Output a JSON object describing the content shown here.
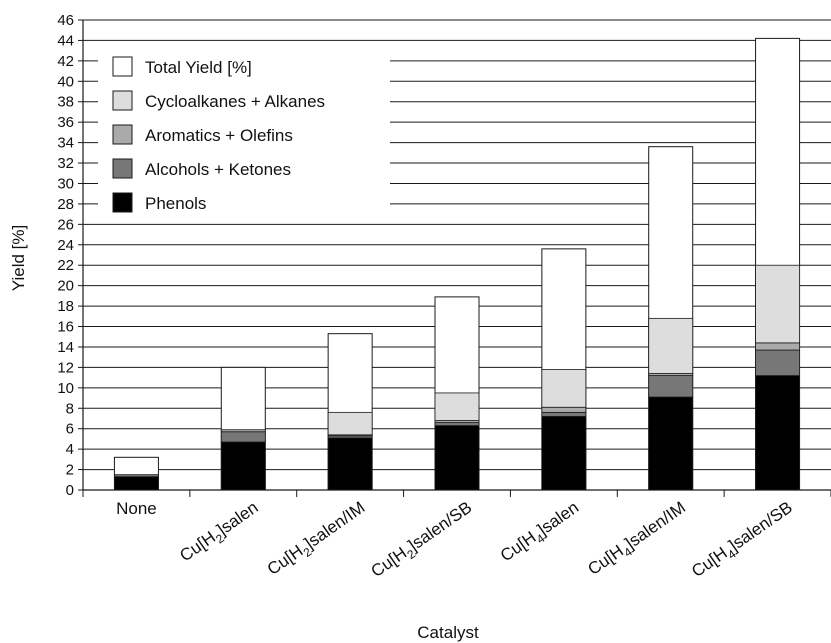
{
  "chart_data": {
    "type": "bar",
    "stacked": true,
    "title": "",
    "xlabel": "Catalyst",
    "ylabel": "Yield [%]",
    "ylim": [
      0,
      46
    ],
    "ytick_step": 2,
    "grid": "horizontal",
    "legend_position": "top-left",
    "categories": [
      {
        "base": "None",
        "sub": "",
        "suffix": ""
      },
      {
        "base": "Cu[H",
        "sub": "2",
        "suffix": "]salen"
      },
      {
        "base": "Cu[H",
        "sub": "2",
        "suffix": "]salen/IM"
      },
      {
        "base": "Cu[H",
        "sub": "2",
        "suffix": "]salen/SB"
      },
      {
        "base": "Cu[H",
        "sub": "4",
        "suffix": "]salen"
      },
      {
        "base": "Cu[H",
        "sub": "4",
        "suffix": "]salen/IM"
      },
      {
        "base": "Cu[H",
        "sub": "4",
        "suffix": "]salen/SB"
      }
    ],
    "series": [
      {
        "name": "Phenols",
        "color": "#000000",
        "values": [
          1.3,
          4.7,
          5.1,
          6.3,
          7.2,
          9.1,
          11.2
        ]
      },
      {
        "name": "Alcohols + Ketones",
        "color": "#777777",
        "values": [
          0.2,
          1.0,
          0.2,
          0.3,
          0.4,
          2.1,
          2.5
        ]
      },
      {
        "name": "Aromatics + Olefins",
        "color": "#aaaaaa",
        "values": [
          0.0,
          0.2,
          0.1,
          0.2,
          0.5,
          0.2,
          0.7
        ]
      },
      {
        "name": "Cycloalkanes + Alkanes",
        "color": "#dddddd",
        "values": [
          0.0,
          0.0,
          2.2,
          2.7,
          3.7,
          5.4,
          7.6
        ]
      }
    ],
    "total": {
      "name": "Total Yield [%]",
      "color": "#ffffff",
      "values": [
        3.2,
        12.0,
        15.3,
        18.9,
        23.6,
        33.6,
        44.2
      ]
    },
    "legend_order": [
      "Total Yield [%]",
      "Cycloalkanes + Alkanes",
      "Aromatics + Olefins",
      "Alcohols + Ketones",
      "Phenols"
    ]
  }
}
